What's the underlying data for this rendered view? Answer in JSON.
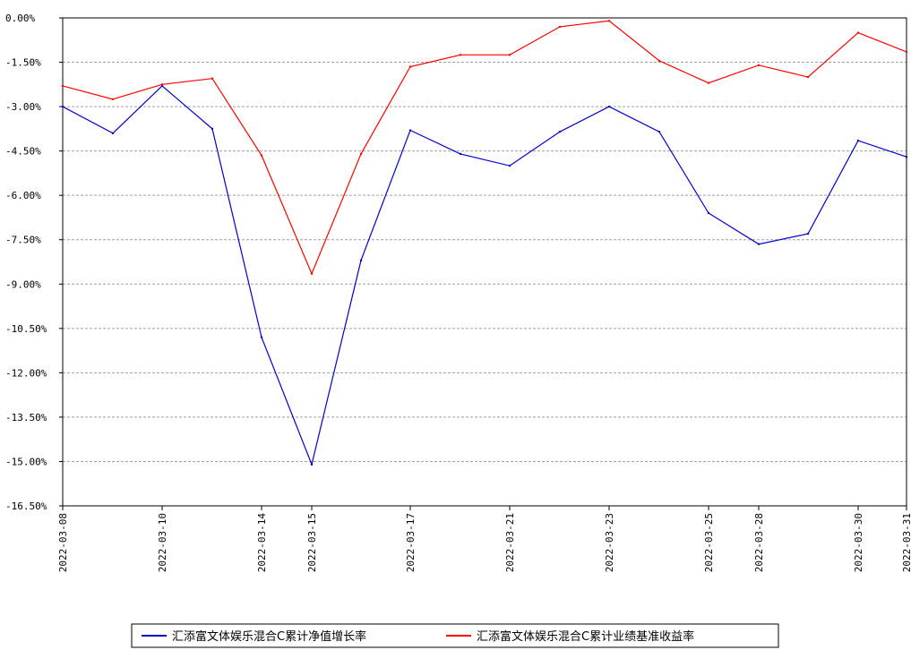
{
  "chart_data": {
    "type": "line",
    "x": [
      "2022-03-08",
      "2022-03-09",
      "2022-03-10",
      "2022-03-11",
      "2022-03-14",
      "2022-03-15",
      "2022-03-16",
      "2022-03-17",
      "2022-03-18",
      "2022-03-21",
      "2022-03-22",
      "2022-03-23",
      "2022-03-24",
      "2022-03-25",
      "2022-03-28",
      "2022-03-29",
      "2022-03-30",
      "2022-03-31"
    ],
    "x_tick_labels": [
      "2022-03-08",
      "2022-03-10",
      "2022-03-14",
      "2022-03-15",
      "2022-03-17",
      "2022-03-21",
      "2022-03-23",
      "2022-03-25",
      "2022-03-28",
      "2022-03-30",
      "2022-03-31"
    ],
    "y_tick_labels": [
      "0.00%",
      "-1.50%",
      "-3.00%",
      "-4.50%",
      "-6.00%",
      "-7.50%",
      "-9.00%",
      "-10.50%",
      "-12.00%",
      "-13.50%",
      "-15.00%",
      "-16.50%"
    ],
    "y_ticks": [
      0,
      -1.5,
      -3,
      -4.5,
      -6,
      -7.5,
      -9,
      -10.5,
      -12,
      -13.5,
      -15,
      -16.5
    ],
    "ylim": [
      -16.5,
      0
    ],
    "grid": true,
    "legend_position": "bottom",
    "series": [
      {
        "name": "汇添富文体娱乐混合C累计净值增长率",
        "color": "#0000cc",
        "values": [
          -3.0,
          -3.9,
          -2.3,
          -3.75,
          -10.8,
          -15.1,
          -8.2,
          -3.8,
          -4.6,
          -5.0,
          -3.85,
          -3.0,
          -3.85,
          -6.6,
          -7.65,
          -7.3,
          -4.15,
          -4.7
        ]
      },
      {
        "name": "汇添富文体娱乐混合C累计业绩基准收益率",
        "color": "#ff0000",
        "values": [
          -2.3,
          -2.75,
          -2.25,
          -2.05,
          -4.65,
          -8.65,
          -4.6,
          -1.65,
          -1.25,
          -1.25,
          -0.3,
          -0.1,
          -1.45,
          -2.2,
          -1.6,
          -2.0,
          -0.5,
          -1.15
        ]
      }
    ]
  }
}
